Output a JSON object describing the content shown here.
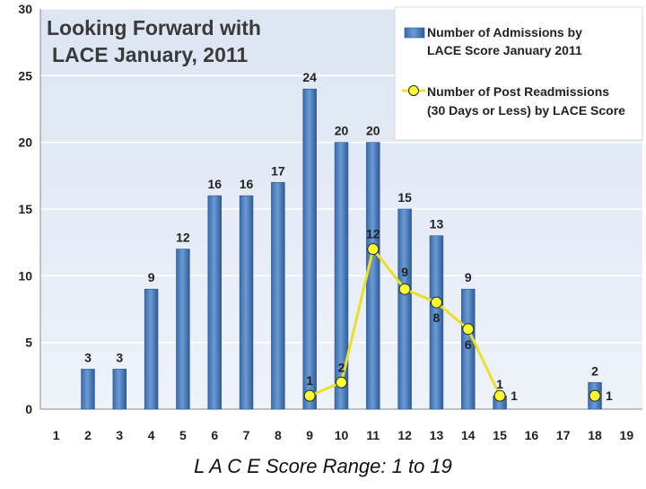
{
  "chart_data": {
    "type": "bar",
    "title": "Looking Forward with LACE January, 2011",
    "title_lines": [
      "Looking Forward with",
      "LACE January, 2011"
    ],
    "xlabel": "L A C E   Score Range: 1 to 19",
    "ylabel": "",
    "ylim": [
      0,
      30
    ],
    "yticks": [
      0,
      5,
      10,
      15,
      20,
      25,
      30
    ],
    "categories": [
      "1",
      "2",
      "3",
      "4",
      "5",
      "6",
      "7",
      "8",
      "9",
      "10",
      "11",
      "12",
      "13",
      "14",
      "15",
      "16",
      "17",
      "18",
      "19"
    ],
    "grid": true,
    "legend_position": "top-right",
    "series": [
      {
        "name": "Number of Admissions by LACE Score January 2011",
        "legend_lines": [
          "Number of Admissions by",
          "LACE Score January 2011"
        ],
        "type": "bar",
        "color": "#4f81bd",
        "values": [
          0,
          3,
          3,
          9,
          12,
          16,
          16,
          17,
          24,
          20,
          20,
          15,
          13,
          9,
          1,
          0,
          0,
          2,
          0
        ],
        "labels": [
          "",
          "3",
          "3",
          "9",
          "12",
          "16",
          "16",
          "17",
          "24",
          "20",
          "20",
          "15",
          "13",
          "9",
          "1",
          "",
          "",
          "2",
          ""
        ]
      },
      {
        "name": "Number of Post Readmissions (30 Days or Less) by LACE Score",
        "legend_lines": [
          "Number of Post Readmissions",
          "(30 Days or Less) by LACE Score"
        ],
        "type": "line",
        "color": "#ffff33",
        "line_color": "#e8e02a",
        "points": [
          {
            "x": "9",
            "y": 1,
            "label": "1"
          },
          {
            "x": "10",
            "y": 2,
            "label": "2"
          },
          {
            "x": "11",
            "y": 12,
            "label": "12"
          },
          {
            "x": "12",
            "y": 9,
            "label": "9"
          },
          {
            "x": "13",
            "y": 8,
            "label": "8"
          },
          {
            "x": "14",
            "y": 6,
            "label": "6"
          },
          {
            "x": "15",
            "y": 1,
            "label": "1"
          },
          {
            "x": "18",
            "y": 1,
            "label": "1",
            "connected": false
          }
        ]
      }
    ]
  }
}
